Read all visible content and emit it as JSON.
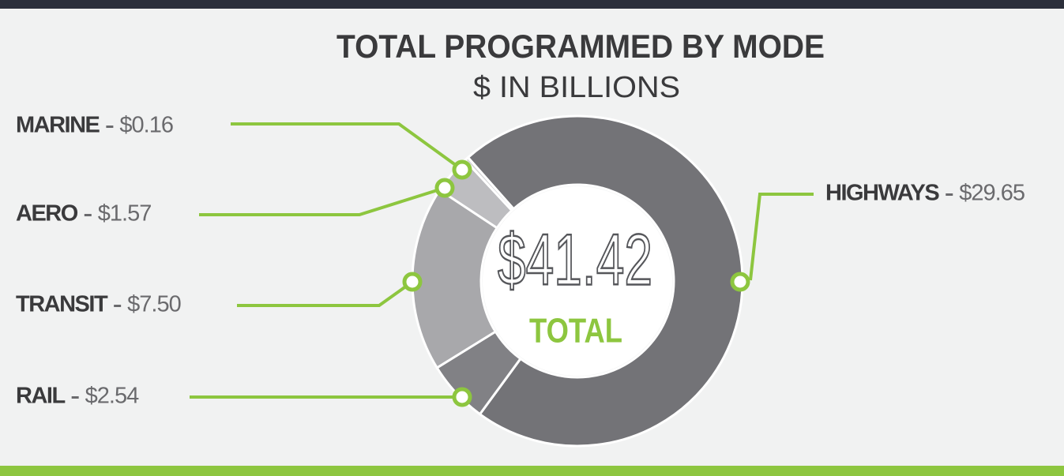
{
  "chart_data": {
    "type": "pie",
    "donut": true,
    "title": "TOTAL PROGRAMMED BY MODE",
    "subtitle": "$ IN BILLIONS",
    "categories": [
      "HIGHWAYS",
      "RAIL",
      "TRANSIT",
      "AERO",
      "MARINE"
    ],
    "values": [
      29.65,
      2.54,
      7.5,
      1.57,
      0.16
    ],
    "value_labels": [
      "$29.65",
      "$2.54",
      "$7.50",
      "$1.57",
      "$0.16"
    ],
    "colors": [
      "#737377",
      "#818185",
      "#a8a8ab",
      "#bdbdc0",
      "#d6d6d8"
    ],
    "annotations": [
      "$41.42",
      "TOTAL"
    ]
  }
}
